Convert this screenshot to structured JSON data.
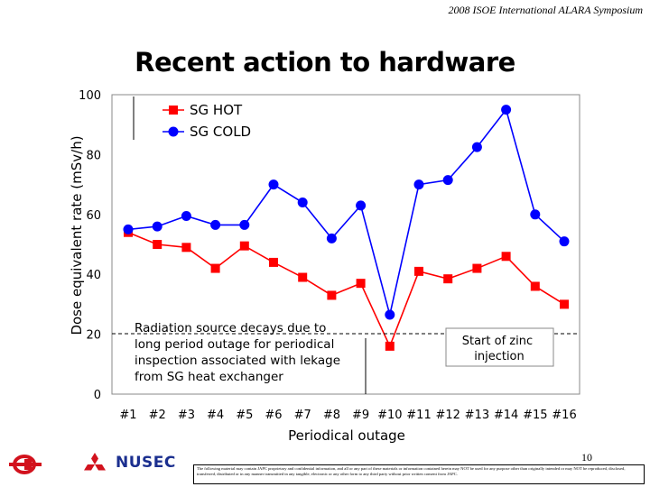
{
  "header": {
    "text": "2008 ISOE International ALARA Symposium"
  },
  "slide": {
    "title": "Recent action to hardware",
    "page_number": "10"
  },
  "chart_data": {
    "type": "line",
    "title": "",
    "xlabel": "Periodical outage",
    "ylabel": "Dose equivalent rate (mSv/h)",
    "ylim": [
      0,
      100
    ],
    "yticks": [
      0,
      20,
      40,
      60,
      80,
      100
    ],
    "categories": [
      "#1",
      "#2",
      "#3",
      "#4",
      "#5",
      "#6",
      "#7",
      "#8",
      "#9",
      "#10",
      "#11",
      "#12",
      "#13",
      "#14",
      "#15",
      "#16"
    ],
    "series": [
      {
        "name": "SG HOT",
        "color": "#ff0000",
        "marker": "square",
        "values": [
          54,
          50,
          49,
          42,
          49.5,
          44,
          39,
          33,
          37,
          16,
          41,
          38.5,
          42,
          46,
          36,
          30
        ]
      },
      {
        "name": "SG COLD",
        "color": "#0000ff",
        "marker": "circle",
        "values": [
          55,
          56,
          59.5,
          56.5,
          56.5,
          70,
          64,
          52,
          63,
          26.5,
          70,
          71.5,
          82.5,
          95,
          60,
          51
        ]
      }
    ],
    "grid": false,
    "legend_position": "top-left",
    "reference_line": {
      "y": 20,
      "style": "dashed"
    },
    "annotations": [
      {
        "text": "Radiation source decays due to long period outage for periodical inspection associated with lekage from SG heat exchanger",
        "target": "#10"
      },
      {
        "text": "Start of zinc injection",
        "target": "#10"
      }
    ]
  },
  "footer": {
    "logo_text": "NUSEC",
    "disclaimer": "The following material may contain JAPC proprietary and confidential information, and all or any part of these materials or information contained herein may NOT be used for any purpose other than originally intended or may NOT be reproduced, disclosed, transferred, distributed or in any manner transmitted in any tangible, electronic or any other form to any third party without prior written consent from JAPC."
  }
}
